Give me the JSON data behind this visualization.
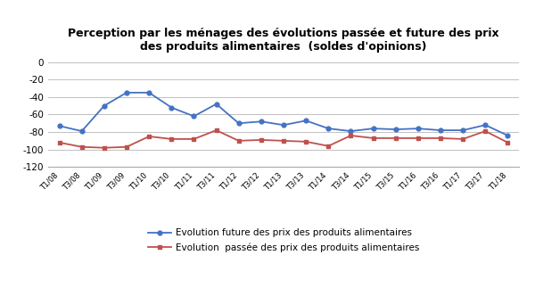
{
  "title": "Perception par les ménages des évolutions passée et future des prix\ndes produits alimentaires  (soldes d'opinions)",
  "labels": [
    "T1/08",
    "T3/08",
    "T1/09",
    "T3/09",
    "T1/10",
    "T3/10",
    "T1/11",
    "T3/11",
    "T1/12",
    "T3/12",
    "T1/13",
    "T3/13",
    "T1/14",
    "T3/14",
    "T1/15",
    "T3/15",
    "T1/16",
    "T3/16",
    "T1/17",
    "T3/17",
    "T1/18"
  ],
  "future": [
    -73,
    -79,
    -50,
    -35,
    -35,
    -52,
    -62,
    -48,
    -70,
    -68,
    -72,
    -67,
    -76,
    -79,
    -76,
    -77,
    -76,
    -78,
    -78,
    -72,
    -84
  ],
  "passee": [
    -92,
    -97,
    -98,
    -97,
    -85,
    -88,
    -88,
    -78,
    -90,
    -89,
    -90,
    -91,
    -96,
    -84,
    -87,
    -87,
    -87,
    -87,
    -88,
    -79,
    -92
  ],
  "future_color": "#4472C4",
  "passee_color": "#C0504D",
  "legend_future": "Evolution future des prix des produits alimentaires",
  "legend_passee": "Evolution  passée des prix des produits alimentaires",
  "ylim": [
    -120,
    5
  ],
  "yticks": [
    0,
    -20,
    -40,
    -60,
    -80,
    -100,
    -120
  ],
  "background_color": "#ffffff",
  "grid_color": "#c0c0c0"
}
